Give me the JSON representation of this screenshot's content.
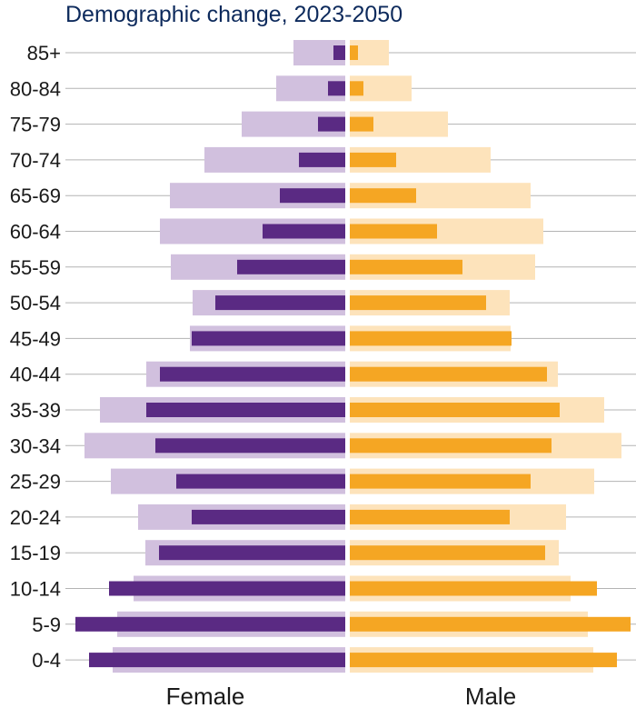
{
  "chart_data": {
    "type": "bar",
    "subtype": "population-pyramid",
    "title": "Demographic change, 2023-2050",
    "categories": [
      "85+",
      "80-84",
      "75-79",
      "70-74",
      "65-69",
      "60-64",
      "55-59",
      "50-54",
      "45-49",
      "40-44",
      "35-39",
      "30-34",
      "25-29",
      "20-24",
      "15-19",
      "10-14",
      "5-9",
      "0-4"
    ],
    "side_labels": {
      "left": "Female",
      "right": "Male"
    },
    "series": [
      {
        "side": "left",
        "style": "wide-light",
        "color": "#d1c0de",
        "values": [
          57,
          76,
          114,
          155,
          193,
          204,
          192,
          168,
          171,
          219,
          270,
          287,
          258,
          228,
          220,
          233,
          251,
          256
        ]
      },
      {
        "side": "left",
        "style": "narrow-dark",
        "color": "#5a2a83",
        "values": [
          13,
          19,
          30,
          51,
          72,
          91,
          119,
          143,
          169,
          204,
          219,
          209,
          186,
          169,
          205,
          260,
          297,
          282
        ]
      },
      {
        "side": "right",
        "style": "wide-light",
        "color": "#fde3bb",
        "values": [
          43,
          68,
          108,
          155,
          199,
          213,
          204,
          176,
          177,
          229,
          280,
          299,
          269,
          238,
          230,
          243,
          262,
          268
        ]
      },
      {
        "side": "right",
        "style": "narrow-dark",
        "color": "#f5a623",
        "values": [
          9,
          15,
          26,
          51,
          73,
          96,
          124,
          150,
          178,
          217,
          231,
          222,
          199,
          176,
          215,
          272,
          309,
          294
        ]
      }
    ],
    "xlim": [
      0,
      310
    ],
    "gridlines": "horizontal",
    "legend": "none"
  }
}
